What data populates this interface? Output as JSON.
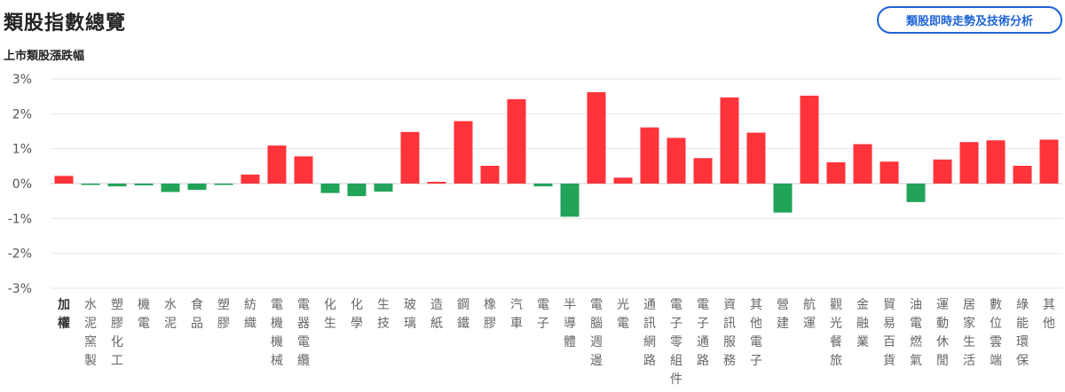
{
  "header": {
    "title": "類股指數總覽",
    "action_button_label": "類股即時走勢及技術分析"
  },
  "chart_data": {
    "type": "bar",
    "title": "上市類股漲跌幅",
    "xlabel": "",
    "ylabel": "",
    "ylim": [
      -3,
      3
    ],
    "yticks": [
      3,
      2,
      1,
      0,
      -1,
      -2,
      -3
    ],
    "ytick_labels": [
      "3%",
      "2%",
      "1%",
      "0%",
      "-1%",
      "-2%",
      "-3%"
    ],
    "grid": true,
    "colors": {
      "up": "#ff333a",
      "down": "#22a35a"
    },
    "categories": [
      "加權",
      "水泥窯製",
      "塑膠化工",
      "機電",
      "水泥",
      "食品",
      "塑膠",
      "紡織",
      "電機機械",
      "電器電纜",
      "化生",
      "化學",
      "生技",
      "玻璃",
      "造紙",
      "鋼鐵",
      "橡膠",
      "汽車",
      "電子",
      "半導體",
      "電腦週邊",
      "光電",
      "通訊網路",
      "電子零組件",
      "電子通路",
      "資訊服務",
      "其他電子",
      "營建",
      "航運",
      "觀光餐旅",
      "金融業",
      "貿易百貨",
      "油電燃氣",
      "運動休閒",
      "居家生活",
      "數位雲端",
      "綠能環保",
      "其他"
    ],
    "values": [
      0.22,
      -0.04,
      -0.08,
      -0.05,
      -0.24,
      -0.18,
      -0.04,
      0.26,
      1.09,
      0.78,
      -0.27,
      -0.36,
      -0.23,
      1.48,
      0.05,
      1.79,
      0.51,
      2.42,
      -0.08,
      -0.95,
      2.62,
      0.17,
      1.61,
      1.31,
      0.73,
      2.47,
      1.46,
      -0.83,
      2.52,
      0.61,
      1.13,
      0.63,
      -0.53,
      0.69,
      1.19,
      1.24,
      0.51,
      1.26
    ]
  }
}
